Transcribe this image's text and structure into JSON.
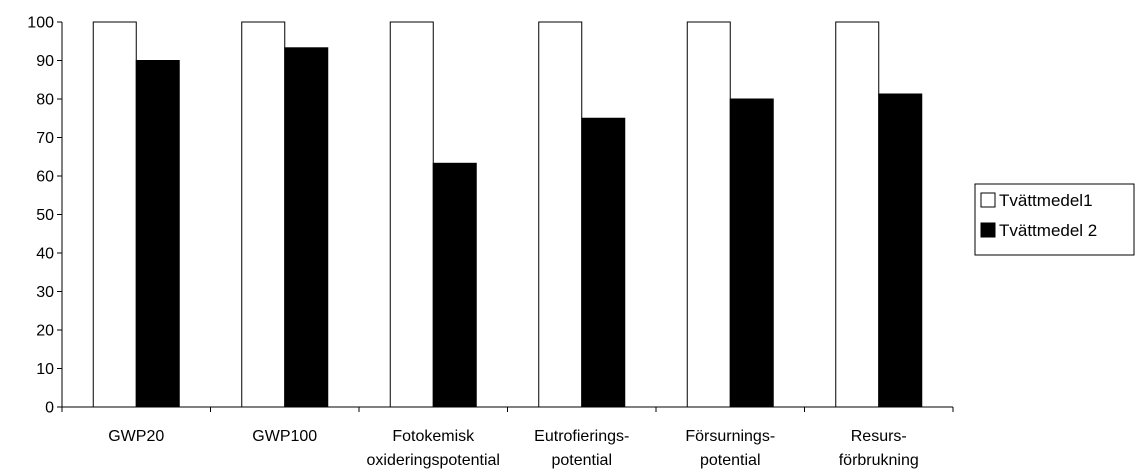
{
  "chart_data": {
    "type": "bar",
    "categories": [
      [
        "GWP20"
      ],
      [
        "GWP100"
      ],
      [
        "Fotokemisk",
        "oxideringspotential"
      ],
      [
        "Eutrofierings-",
        "potential"
      ],
      [
        "Försurnings-",
        "potential"
      ],
      [
        "Resurs-",
        "förbrukning"
      ]
    ],
    "series": [
      {
        "name": "Tvättmedel1",
        "color": "#ffffff",
        "values": [
          100,
          100,
          100,
          100,
          100,
          100
        ]
      },
      {
        "name": "Tvättmedel 2",
        "color": "#000000",
        "values": [
          90,
          93.3,
          63.3,
          75,
          80,
          81.3
        ]
      }
    ],
    "ylim": [
      0,
      100
    ],
    "yticks": [
      0,
      10,
      20,
      30,
      40,
      50,
      60,
      70,
      80,
      90,
      100
    ],
    "grid": false,
    "legend_position": "right"
  }
}
